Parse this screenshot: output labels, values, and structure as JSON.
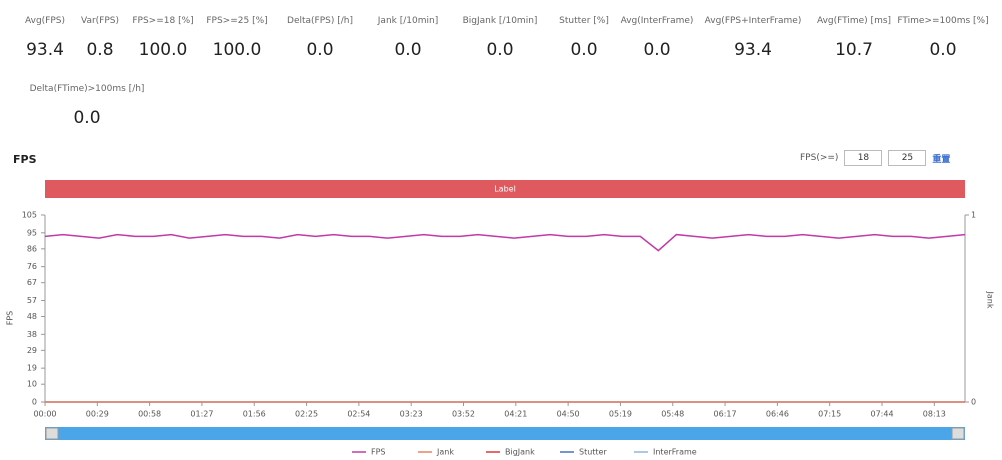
{
  "stats": [
    {
      "label": "Avg(FPS)",
      "value": "93.4"
    },
    {
      "label": "Var(FPS)",
      "value": "0.8"
    },
    {
      "label": "FPS>=18 [%]",
      "value": "100.0"
    },
    {
      "label": "FPS>=25 [%]",
      "value": "100.0"
    },
    {
      "label": "Delta(FPS) [/h]",
      "value": "0.0"
    },
    {
      "label": "Jank [/10min]",
      "value": "0.0"
    },
    {
      "label": "BigJank [/10min]",
      "value": "0.0"
    },
    {
      "label": "Stutter [%]",
      "value": "0.0"
    },
    {
      "label": "Avg(InterFrame)",
      "value": "0.0"
    },
    {
      "label": "Avg(FPS+InterFrame)",
      "value": "93.4"
    },
    {
      "label": "Avg(FTime) [ms]",
      "value": "10.7"
    },
    {
      "label": "FTime>=100ms [%]",
      "value": "0.0"
    },
    {
      "label": "Delta(FTime)>100ms [/h]",
      "value": "0.0"
    }
  ],
  "controls": {
    "label": "FPS(>=)",
    "low": "18",
    "high": "25",
    "reset": "重置"
  },
  "chart_data": {
    "type": "line",
    "title": "FPS",
    "band_label": "Label",
    "ylabel": "FPS",
    "y2label": "Jank",
    "x": [
      0,
      10,
      20,
      30,
      40,
      50,
      60,
      70,
      80,
      90,
      100,
      110,
      120,
      130,
      140,
      150,
      160,
      170,
      180,
      190,
      200,
      210,
      220,
      230,
      240,
      250,
      260,
      270,
      280,
      290,
      300,
      310,
      320,
      330,
      340,
      350,
      360,
      370,
      380,
      390,
      400,
      410,
      420,
      430,
      440,
      450,
      460,
      470,
      480,
      490,
      500,
      510
    ],
    "xlim": [
      0,
      510
    ],
    "xticks": [
      {
        "value": 0,
        "label": "00:00"
      },
      {
        "value": 29,
        "label": "00:29"
      },
      {
        "value": 58,
        "label": "00:58"
      },
      {
        "value": 87,
        "label": "01:27"
      },
      {
        "value": 116,
        "label": "01:56"
      },
      {
        "value": 145,
        "label": "02:25"
      },
      {
        "value": 174,
        "label": "02:54"
      },
      {
        "value": 203,
        "label": "03:23"
      },
      {
        "value": 232,
        "label": "03:52"
      },
      {
        "value": 261,
        "label": "04:21"
      },
      {
        "value": 290,
        "label": "04:50"
      },
      {
        "value": 319,
        "label": "05:19"
      },
      {
        "value": 348,
        "label": "05:48"
      },
      {
        "value": 377,
        "label": "06:17"
      },
      {
        "value": 406,
        "label": "06:46"
      },
      {
        "value": 435,
        "label": "07:15"
      },
      {
        "value": 464,
        "label": "07:44"
      },
      {
        "value": 493,
        "label": "08:13"
      }
    ],
    "ylim": [
      0,
      105
    ],
    "yticks": [
      0,
      10,
      19,
      29,
      38,
      48,
      57,
      67,
      76,
      86,
      95,
      105
    ],
    "y2lim": [
      0,
      1
    ],
    "y2ticks": [
      0,
      1
    ],
    "series": [
      {
        "name": "FPS",
        "color": "#c23aa8",
        "values": [
          93,
          94,
          93,
          92,
          94,
          93,
          93,
          94,
          92,
          93,
          94,
          93,
          93,
          92,
          94,
          93,
          94,
          93,
          93,
          92,
          93,
          94,
          93,
          93,
          94,
          93,
          92,
          93,
          94,
          93,
          93,
          94,
          93,
          93,
          85,
          94,
          93,
          92,
          93,
          94,
          93,
          93,
          94,
          93,
          92,
          93,
          94,
          93,
          93,
          92,
          93,
          94
        ]
      },
      {
        "name": "Jank",
        "color": "#e8825f",
        "axis": "y2",
        "values": [
          0,
          0,
          0,
          0,
          0,
          0,
          0,
          0,
          0,
          0,
          0,
          0,
          0,
          0,
          0,
          0,
          0,
          0,
          0,
          0,
          0,
          0,
          0,
          0,
          0,
          0,
          0,
          0,
          0,
          0,
          0,
          0,
          0,
          0,
          0,
          0,
          0,
          0,
          0,
          0,
          0,
          0,
          0,
          0,
          0,
          0,
          0,
          0,
          0,
          0,
          0,
          0
        ]
      },
      {
        "name": "BigJank",
        "color": "#d83a3a",
        "axis": "y2",
        "values": [
          0,
          0,
          0,
          0,
          0,
          0,
          0,
          0,
          0,
          0,
          0,
          0,
          0,
          0,
          0,
          0,
          0,
          0,
          0,
          0,
          0,
          0,
          0,
          0,
          0,
          0,
          0,
          0,
          0,
          0,
          0,
          0,
          0,
          0,
          0,
          0,
          0,
          0,
          0,
          0,
          0,
          0,
          0,
          0,
          0,
          0,
          0,
          0,
          0,
          0,
          0,
          0
        ]
      },
      {
        "name": "Stutter",
        "color": "#4472c4",
        "values": [
          0,
          0,
          0,
          0,
          0,
          0,
          0,
          0,
          0,
          0,
          0,
          0,
          0,
          0,
          0,
          0,
          0,
          0,
          0,
          0,
          0,
          0,
          0,
          0,
          0,
          0,
          0,
          0,
          0,
          0,
          0,
          0,
          0,
          0,
          0,
          0,
          0,
          0,
          0,
          0,
          0,
          0,
          0,
          0,
          0,
          0,
          0,
          0,
          0,
          0,
          0,
          0
        ]
      },
      {
        "name": "InterFrame",
        "color": "#8fb5e0",
        "values": [
          0,
          0,
          0,
          0,
          0,
          0,
          0,
          0,
          0,
          0,
          0,
          0,
          0,
          0,
          0,
          0,
          0,
          0,
          0,
          0,
          0,
          0,
          0,
          0,
          0,
          0,
          0,
          0,
          0,
          0,
          0,
          0,
          0,
          0,
          0,
          0,
          0,
          0,
          0,
          0,
          0,
          0,
          0,
          0,
          0,
          0,
          0,
          0,
          0,
          0,
          0,
          0
        ]
      }
    ]
  }
}
